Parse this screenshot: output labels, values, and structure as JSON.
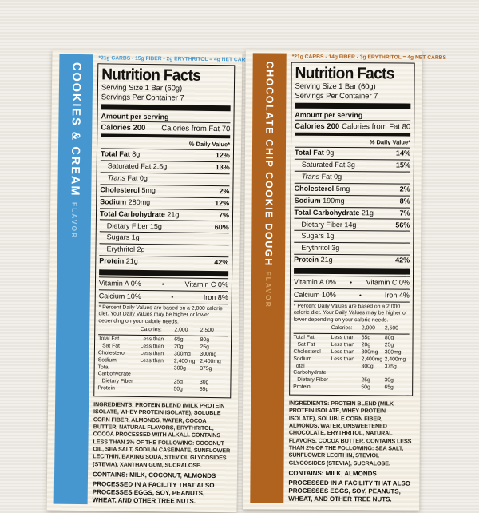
{
  "page": {
    "background_color": "#edeae3",
    "description": "Two protein bar nutrition fact labels side by side"
  },
  "shared": {
    "title": "Nutrition Facts",
    "serving_size": "Serving Size 1 Bar (60g)",
    "servings_per_container": "Servings Per Container 7",
    "amount_per_serving": "Amount per serving",
    "daily_value_header": "% Daily Value*",
    "footnote": "* Percent Daily Values are based on a 2,000 calorie diet. Your Daily Values may be higher or lower depending on your calorie needs.",
    "dv_table": {
      "header": {
        "col2": "Calories:",
        "col3": "2,000",
        "col4": "2,500"
      },
      "rows": [
        {
          "name": "Total Fat",
          "qual": "Less than",
          "v1": "65g",
          "v2": "80g",
          "indent": 0
        },
        {
          "name": "Sat Fat",
          "qual": "Less than",
          "v1": "20g",
          "v2": "25g",
          "indent": 1
        },
        {
          "name": "Cholesterol",
          "qual": "Less than",
          "v1": "300mg",
          "v2": "300mg",
          "indent": 0
        },
        {
          "name": "Sodium",
          "qual": "Less than",
          "v1": "2,400mg",
          "v2": "2,400mg",
          "indent": 0
        },
        {
          "name": "Total Carbohydrate",
          "qual": "",
          "v1": "300g",
          "v2": "375g",
          "indent": 0
        },
        {
          "name": "Dietary Fiber",
          "qual": "",
          "v1": "25g",
          "v2": "30g",
          "indent": 1
        },
        {
          "name": "Protein",
          "qual": "",
          "v1": "50g",
          "v2": "65g",
          "indent": 0
        }
      ]
    },
    "processed": "PROCESSED IN A FACILITY THAT ALSO PROCESSES EGGS, SOY, PEANUTS, WHEAT, AND OTHER TREE NUTS."
  },
  "labels": [
    {
      "flavor_name": "COOKIES & CREAM",
      "flavor_suffix": "FLAVOR",
      "accent_color": "#4697d0",
      "accent_light": "#a9d0ea",
      "net_carbs": "*21g CARBS - 15g FIBER - 2g ERYTHRITOL = 4g NET CARBS",
      "calories_label": "Calories 200",
      "calories_from_fat": "Calories from Fat 70",
      "rows": [
        {
          "parts": [
            {
              "t": "Total Fat",
              "s": "b"
            },
            {
              "t": " 8g",
              "s": ""
            }
          ],
          "pct": "12%",
          "indent": 0
        },
        {
          "parts": [
            {
              "t": "Saturated Fat 2.5g",
              "s": ""
            }
          ],
          "pct": "13%",
          "indent": 1
        },
        {
          "parts": [
            {
              "t": "Trans",
              "s": "i"
            },
            {
              "t": " Fat 0g",
              "s": ""
            }
          ],
          "pct": "",
          "indent": 1
        },
        {
          "parts": [
            {
              "t": "Cholesterol",
              "s": "b"
            },
            {
              "t": " 5mg",
              "s": ""
            }
          ],
          "pct": "2%",
          "indent": 0
        },
        {
          "parts": [
            {
              "t": "Sodium",
              "s": "b"
            },
            {
              "t": " 280mg",
              "s": ""
            }
          ],
          "pct": "12%",
          "indent": 0
        },
        {
          "parts": [
            {
              "t": "Total Carbohydrate",
              "s": "b"
            },
            {
              "t": " 21g",
              "s": ""
            }
          ],
          "pct": "7%",
          "indent": 0
        },
        {
          "parts": [
            {
              "t": "Dietary Fiber 15g",
              "s": ""
            }
          ],
          "pct": "60%",
          "indent": 1
        },
        {
          "parts": [
            {
              "t": "Sugars 1g",
              "s": ""
            }
          ],
          "pct": "",
          "indent": 1
        },
        {
          "parts": [
            {
              "t": "Erythritol 2g",
              "s": ""
            }
          ],
          "pct": "",
          "indent": 1
        },
        {
          "parts": [
            {
              "t": "Protein",
              "s": "b"
            },
            {
              "t": " 21g",
              "s": ""
            }
          ],
          "pct": "42%",
          "indent": 0
        }
      ],
      "vitamin_rows": [
        {
          "left": "Vitamin A 0%",
          "right": "Vitamin C 0%"
        },
        {
          "left": "Calcium 10%",
          "right": "Iron 8%"
        }
      ],
      "ingredients": "INGREDIENTS: PROTEIN BLEND (MILK PROTEIN ISOLATE, WHEY PROTEIN ISOLATE), SOLUBLE CORN FIBER, ALMONDS, WATER, COCOA BUTTER, NATURAL FLAVORS, ERYTHRITOL, COCOA PROCESSED WITH ALKALI. CONTAINS LESS THAN 2% OF THE FOLLOWING: COCONUT OIL, SEA SALT, SODIUM CASEINATE, SUNFLOWER LECITHIN, BAKING SODA, STEVIOL GLYCOSIDES (STEVIA), XANTHAN GUM, SUCRALOSE.",
      "contains": "CONTAINS: MILK, COCONUT, ALMONDS"
    },
    {
      "flavor_name": "CHOCOLATE CHIP COOKIE DOUGH",
      "flavor_suffix": "FLAVOR",
      "accent_color": "#b0631f",
      "accent_light": "#d9a365",
      "net_carbs": "*21g CARBS - 14g FIBER - 3g ERYTHRITOL = 4g NET CARBS",
      "calories_label": "Calories 200",
      "calories_from_fat": "Calories from Fat 80",
      "rows": [
        {
          "parts": [
            {
              "t": "Total Fat",
              "s": "b"
            },
            {
              "t": " 9g",
              "s": ""
            }
          ],
          "pct": "14%",
          "indent": 0
        },
        {
          "parts": [
            {
              "t": "Saturated Fat 3g",
              "s": ""
            }
          ],
          "pct": "15%",
          "indent": 1
        },
        {
          "parts": [
            {
              "t": "Trans",
              "s": "i"
            },
            {
              "t": " Fat 0g",
              "s": ""
            }
          ],
          "pct": "",
          "indent": 1
        },
        {
          "parts": [
            {
              "t": "Cholesterol",
              "s": "b"
            },
            {
              "t": " 5mg",
              "s": ""
            }
          ],
          "pct": "2%",
          "indent": 0
        },
        {
          "parts": [
            {
              "t": "Sodium",
              "s": "b"
            },
            {
              "t": " 190mg",
              "s": ""
            }
          ],
          "pct": "8%",
          "indent": 0
        },
        {
          "parts": [
            {
              "t": "Total Carbohydrate",
              "s": "b"
            },
            {
              "t": " 21g",
              "s": ""
            }
          ],
          "pct": "7%",
          "indent": 0
        },
        {
          "parts": [
            {
              "t": "Dietary Fiber 14g",
              "s": ""
            }
          ],
          "pct": "56%",
          "indent": 1
        },
        {
          "parts": [
            {
              "t": "Sugars 1g",
              "s": ""
            }
          ],
          "pct": "",
          "indent": 1
        },
        {
          "parts": [
            {
              "t": "Erythritol 3g",
              "s": ""
            }
          ],
          "pct": "",
          "indent": 1
        },
        {
          "parts": [
            {
              "t": "Protein",
              "s": "b"
            },
            {
              "t": " 21g",
              "s": ""
            }
          ],
          "pct": "42%",
          "indent": 0
        }
      ],
      "vitamin_rows": [
        {
          "left": "Vitamin A 0%",
          "right": "Vitamin C 0%"
        },
        {
          "left": "Calcium 10%",
          "right": "Iron 4%"
        }
      ],
      "ingredients": "INGREDIENTS: PROTEIN BLEND (MILK PROTEIN ISOLATE, WHEY PROTEIN ISOLATE), SOLUBLE CORN FIBER, ALMONDS, WATER, UNSWEETENED CHOCOLATE, ERYTHRITOL, NATURAL FLAVORS, COCOA BUTTER. CONTAINS LESS THAN 2% OF THE FOLLOWING: SEA SALT, SUNFLOWER LECITHIN, STEVIOL GLYCOSIDES (STEVIA), SUCRALOSE.",
      "contains": "CONTAINS: MILK, ALMONDS"
    }
  ]
}
